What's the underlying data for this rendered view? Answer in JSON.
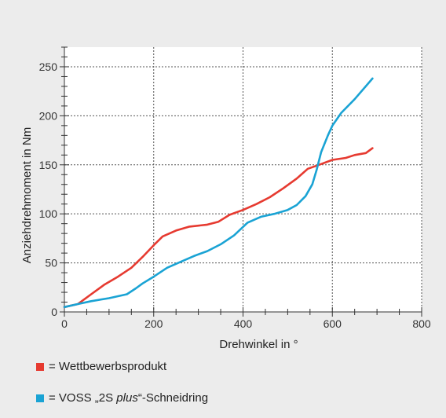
{
  "chart_data": {
    "type": "line",
    "xlabel": "Drehwinkel in °",
    "ylabel": "Anziehdrehmoment in Nm",
    "xlim": [
      0,
      800
    ],
    "ylim": [
      0,
      270
    ],
    "x_ticks": [
      0,
      200,
      400,
      600,
      800
    ],
    "y_ticks": [
      0,
      50,
      100,
      150,
      200,
      250
    ],
    "x_tick_labels": [
      "0",
      "200",
      "400",
      "600",
      "800"
    ],
    "y_tick_labels": [
      "0",
      "50",
      "100",
      "150",
      "200",
      "250"
    ],
    "grid": true,
    "legend_position": "bottom-left",
    "series": [
      {
        "name": "Wettbewerbsprodukt",
        "color": "#e63a30",
        "points": [
          [
            0,
            5
          ],
          [
            30,
            8
          ],
          [
            60,
            18
          ],
          [
            90,
            28
          ],
          [
            120,
            36
          ],
          [
            150,
            45
          ],
          [
            175,
            56
          ],
          [
            200,
            68
          ],
          [
            220,
            77
          ],
          [
            250,
            83
          ],
          [
            280,
            87
          ],
          [
            320,
            89
          ],
          [
            345,
            92
          ],
          [
            370,
            99
          ],
          [
            400,
            104
          ],
          [
            430,
            110
          ],
          [
            460,
            117
          ],
          [
            490,
            126
          ],
          [
            520,
            136
          ],
          [
            545,
            146
          ],
          [
            570,
            150
          ],
          [
            600,
            155
          ],
          [
            630,
            157
          ],
          [
            650,
            160
          ],
          [
            675,
            162
          ],
          [
            690,
            167
          ]
        ]
      },
      {
        "name": "VOSS „2S plus“-Schneidring",
        "color": "#1aa3d4",
        "points": [
          [
            0,
            5
          ],
          [
            30,
            8
          ],
          [
            60,
            11
          ],
          [
            100,
            14
          ],
          [
            140,
            18
          ],
          [
            160,
            24
          ],
          [
            175,
            29
          ],
          [
            200,
            36
          ],
          [
            230,
            45
          ],
          [
            260,
            51
          ],
          [
            290,
            57
          ],
          [
            320,
            62
          ],
          [
            350,
            69
          ],
          [
            380,
            78
          ],
          [
            410,
            91
          ],
          [
            440,
            97
          ],
          [
            470,
            100
          ],
          [
            500,
            104
          ],
          [
            520,
            109
          ],
          [
            540,
            118
          ],
          [
            555,
            130
          ],
          [
            565,
            145
          ],
          [
            575,
            163
          ],
          [
            590,
            180
          ],
          [
            600,
            190
          ],
          [
            620,
            203
          ],
          [
            650,
            217
          ],
          [
            690,
            238
          ]
        ]
      }
    ]
  },
  "legend": {
    "items": [
      {
        "prefix": "= Wettbewerbsprodukt",
        "color": "#e63a30"
      },
      {
        "prefix": "= VOSS „2S ",
        "italic": "plus",
        "suffix": "“-Schneidring",
        "color": "#1aa3d4"
      }
    ]
  }
}
